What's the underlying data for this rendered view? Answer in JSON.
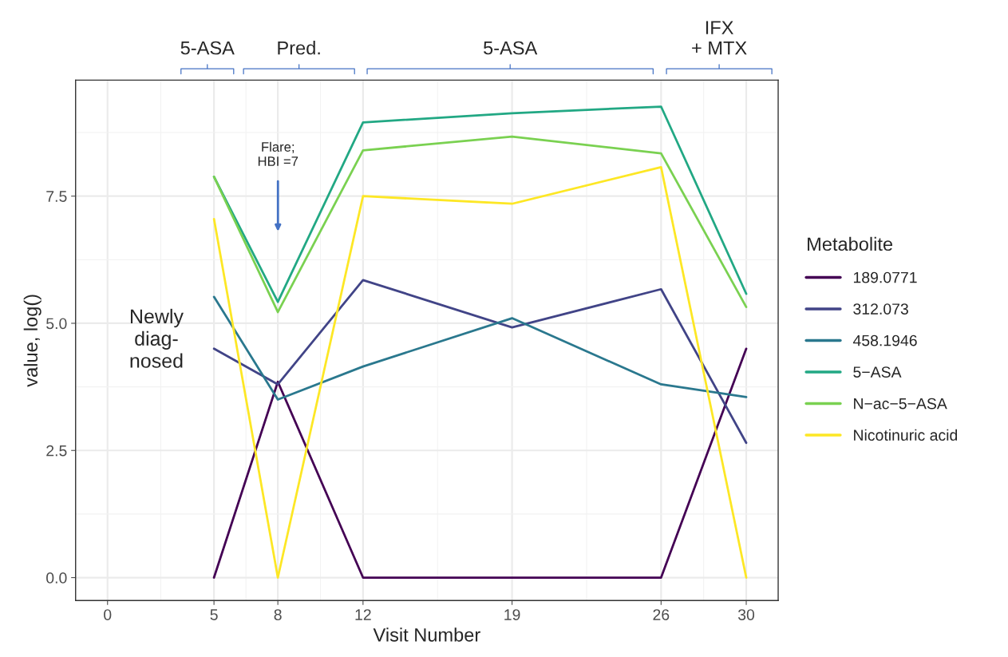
{
  "chart_data": {
    "type": "line",
    "xlabel": "Visit Number",
    "ylabel": "value, log()",
    "legend_title": "Metabolite",
    "x": [
      5,
      8,
      12,
      19,
      26,
      30
    ],
    "series": [
      {
        "name": "189.0771",
        "color": "#440154",
        "values": [
          0,
          3.85,
          0,
          0,
          0,
          4.5
        ]
      },
      {
        "name": "312.073",
        "color": "#414487",
        "values": [
          4.5,
          3.8,
          5.85,
          4.92,
          5.67,
          2.65
        ]
      },
      {
        "name": "458.1946",
        "color": "#2a788e",
        "values": [
          5.52,
          3.5,
          4.15,
          5.1,
          3.8,
          3.55
        ]
      },
      {
        "name": "5−ASA",
        "color": "#22a884",
        "values": [
          7.88,
          5.42,
          8.95,
          9.13,
          9.26,
          5.58
        ]
      },
      {
        "name": "N−ac−5−ASA",
        "color": "#7ad151",
        "values": [
          7.88,
          5.22,
          8.4,
          8.67,
          8.34,
          5.32
        ]
      },
      {
        "name": "Nicotinuric acid",
        "color": "#fde725",
        "values": [
          7.05,
          0,
          7.5,
          7.35,
          8.07,
          0
        ]
      }
    ],
    "xlim": [
      -1.5,
      31.5
    ],
    "xticks": [
      0,
      5,
      8,
      12,
      19,
      26,
      30
    ],
    "ylim": [
      -0.45,
      9.78
    ],
    "yticks": [
      {
        "value": 0,
        "label": "0.0"
      },
      {
        "value": 2.5,
        "label": "2.5"
      },
      {
        "value": 5,
        "label": "5.0"
      },
      {
        "value": 7.5,
        "label": "7.5"
      }
    ],
    "grid": true,
    "legend": "right",
    "annotations": [
      "5-ASA",
      "Pred.",
      "5-ASA",
      "IFX\n+ MTX",
      "Flare;\nHBI =7",
      "Newly\ndiag-\nnosed"
    ]
  }
}
